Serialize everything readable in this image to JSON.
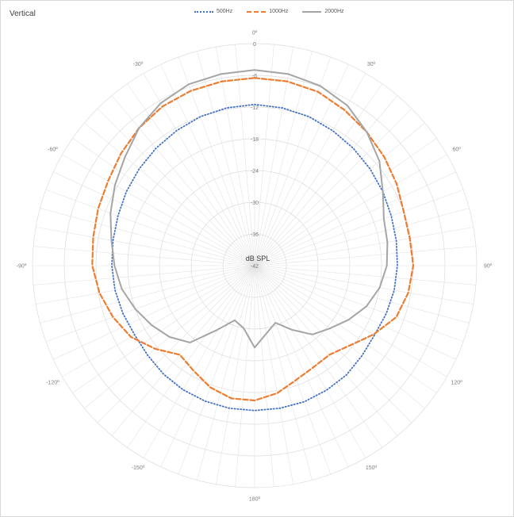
{
  "chart_data": {
    "type": "line",
    "polar": true,
    "title": "Vertical",
    "center_label": "dB SPL",
    "radial_range": [
      -42,
      0
    ],
    "radial_ticks": [
      0,
      -6,
      -12,
      -18,
      -24,
      -30,
      -36,
      -42
    ],
    "radial_tick_labels": [
      "0",
      "-6",
      "-12",
      "-18",
      "-24",
      "-30",
      "-36",
      "-42"
    ],
    "angle_tick_step_deg": 5,
    "angle_labels": [
      {
        "angle": 0,
        "text": "0º"
      },
      {
        "angle": 30,
        "text": "30º"
      },
      {
        "angle": 60,
        "text": "60º"
      },
      {
        "angle": 90,
        "text": "90º"
      },
      {
        "angle": 120,
        "text": "120º"
      },
      {
        "angle": 150,
        "text": "150º"
      },
      {
        "angle": 180,
        "text": "180º"
      },
      {
        "angle": -150,
        "text": "-150º"
      },
      {
        "angle": -120,
        "text": "-120º"
      },
      {
        "angle": -90,
        "text": "-90º"
      },
      {
        "angle": -60,
        "text": "-60º"
      },
      {
        "angle": -30,
        "text": "-30º"
      }
    ],
    "legend_position": "top",
    "grid": true,
    "angles": [
      0,
      10,
      20,
      30,
      40,
      50,
      60,
      70,
      80,
      90,
      100,
      110,
      120,
      130,
      140,
      150,
      160,
      170,
      180,
      190,
      200,
      210,
      220,
      230,
      240,
      250,
      260,
      270,
      280,
      290,
      300,
      310,
      320,
      330,
      340,
      350
    ],
    "series": [
      {
        "name": "500Hz",
        "color": "#4472c4",
        "dash": "dotted",
        "values": [
          -11.5,
          -11.7,
          -12.0,
          -12.5,
          -13.0,
          -13.5,
          -14.0,
          -14.5,
          -14.8,
          -15.0,
          -15.2,
          -15.5,
          -15.8,
          -15.5,
          -15.0,
          -14.8,
          -14.6,
          -14.6,
          -14.6,
          -14.6,
          -14.7,
          -14.9,
          -15.2,
          -15.6,
          -15.8,
          -15.5,
          -15.2,
          -15.0,
          -14.8,
          -14.5,
          -14.0,
          -13.5,
          -13.0,
          -12.5,
          -12.0,
          -11.7
        ]
      },
      {
        "name": "1000Hz",
        "color": "#ed7d31",
        "dash": "dashed",
        "values": [
          -6.5,
          -6.6,
          -7.0,
          -8.0,
          -9.0,
          -10.0,
          -11.0,
          -12.0,
          -12.2,
          -12.0,
          -12.5,
          -13.5,
          -16.0,
          -18.5,
          -20.0,
          -19.8,
          -19.0,
          -17.5,
          -16.5,
          -16.5,
          -17.5,
          -19.0,
          -20.0,
          -17.5,
          -15.0,
          -13.5,
          -12.2,
          -11.3,
          -11.0,
          -10.5,
          -10.0,
          -9.0,
          -8.0,
          -7.2,
          -6.8,
          -6.6
        ]
      },
      {
        "name": "2000Hz",
        "color": "#a5a5a5",
        "dash": "solid",
        "values": [
          -5.0,
          -5.2,
          -5.8,
          -7.0,
          -9.0,
          -11.2,
          -14.0,
          -16.0,
          -16.5,
          -17.0,
          -18.0,
          -19.5,
          -21.5,
          -23.5,
          -25.0,
          -28.0,
          -30.5,
          -29.0,
          -26.5,
          -30.0,
          -31.0,
          -28.0,
          -23.0,
          -21.0,
          -19.5,
          -18.0,
          -16.5,
          -15.5,
          -14.5,
          -13.0,
          -11.5,
          -10.0,
          -8.0,
          -6.5,
          -5.5,
          -5.2
        ]
      }
    ]
  }
}
